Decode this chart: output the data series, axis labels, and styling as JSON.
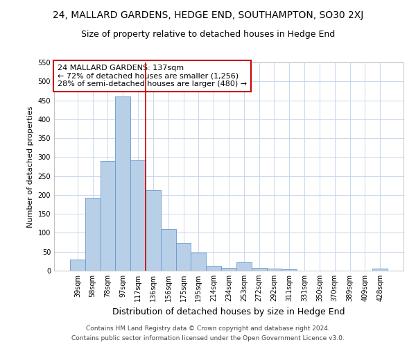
{
  "title": "24, MALLARD GARDENS, HEDGE END, SOUTHAMPTON, SO30 2XJ",
  "subtitle": "Size of property relative to detached houses in Hedge End",
  "xlabel": "Distribution of detached houses by size in Hedge End",
  "ylabel": "Number of detached properties",
  "categories": [
    "39sqm",
    "58sqm",
    "78sqm",
    "97sqm",
    "117sqm",
    "136sqm",
    "156sqm",
    "175sqm",
    "195sqm",
    "214sqm",
    "234sqm",
    "253sqm",
    "272sqm",
    "292sqm",
    "311sqm",
    "331sqm",
    "350sqm",
    "370sqm",
    "389sqm",
    "409sqm",
    "428sqm"
  ],
  "values": [
    30,
    192,
    290,
    460,
    292,
    212,
    110,
    73,
    47,
    12,
    8,
    22,
    8,
    5,
    4,
    0,
    0,
    0,
    0,
    0,
    5
  ],
  "bar_color": "#b8cfe8",
  "bar_edge_color": "#6699cc",
  "vline_x_idx": 5,
  "vline_color": "#cc0000",
  "annotation_line1": "24 MALLARD GARDENS: 137sqm",
  "annotation_line2": "← 72% of detached houses are smaller (1,256)",
  "annotation_line3": "28% of semi-detached houses are larger (480) →",
  "annotation_box_color": "#cc0000",
  "background_color": "#ffffff",
  "grid_color": "#c8d8ec",
  "ylim": [
    0,
    550
  ],
  "yticks": [
    0,
    50,
    100,
    150,
    200,
    250,
    300,
    350,
    400,
    450,
    500,
    550
  ],
  "footnote1": "Contains HM Land Registry data © Crown copyright and database right 2024.",
  "footnote2": "Contains public sector information licensed under the Open Government Licence v3.0.",
  "title_fontsize": 10,
  "subtitle_fontsize": 9,
  "xlabel_fontsize": 9,
  "ylabel_fontsize": 8,
  "tick_fontsize": 7,
  "annotation_fontsize": 8,
  "footnote_fontsize": 6.5
}
